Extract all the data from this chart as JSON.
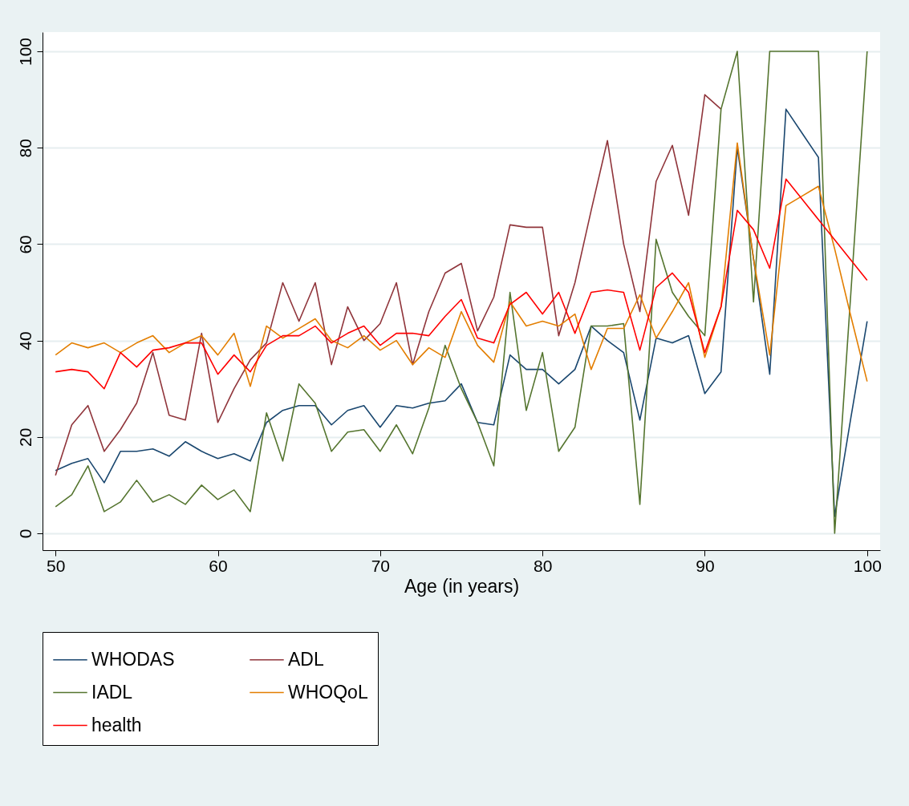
{
  "chart_data": {
    "type": "line",
    "xlabel": "Age (in years)",
    "x": [
      50,
      51,
      52,
      53,
      54,
      55,
      56,
      57,
      58,
      59,
      60,
      61,
      62,
      63,
      64,
      65,
      66,
      67,
      68,
      69,
      70,
      71,
      72,
      73,
      74,
      75,
      76,
      77,
      78,
      79,
      80,
      81,
      82,
      83,
      84,
      85,
      86,
      87,
      88,
      89,
      90,
      91,
      92,
      93,
      94,
      95,
      96,
      97,
      98,
      99,
      100
    ],
    "series": [
      {
        "name": "WHODAS",
        "color": "#1a476f",
        "values": [
          13,
          14.5,
          15.5,
          10.5,
          17,
          17,
          17.5,
          16,
          19,
          17,
          15.5,
          16.5,
          15,
          23,
          25.5,
          26.5,
          26.5,
          22.5,
          25.5,
          26.5,
          22,
          26.5,
          26,
          27,
          27.5,
          31,
          23,
          22.5,
          37,
          34,
          34,
          31,
          34,
          43,
          40,
          37.5,
          23.5,
          40.5,
          39.5,
          41,
          29,
          33.5,
          80,
          57,
          33,
          88,
          83,
          78,
          3.5,
          24,
          44
        ]
      },
      {
        "name": "ADL",
        "color": "#90353b",
        "values": [
          12,
          22.5,
          26.5,
          17,
          21.5,
          27,
          37.5,
          24.5,
          23.5,
          41.5,
          23,
          30,
          36,
          39.5,
          52,
          44,
          52,
          35,
          47,
          40,
          43.5,
          52,
          35,
          46,
          54,
          56,
          42,
          49,
          64,
          63.5,
          63.5,
          41,
          52,
          67,
          81.5,
          60,
          46,
          73,
          80.5,
          66,
          91,
          88,
          null,
          null,
          null,
          null,
          null,
          null,
          null,
          null,
          null
        ]
      },
      {
        "name": "IADL",
        "color": "#55752f",
        "values": [
          5.5,
          8,
          14,
          4.5,
          6.5,
          11,
          6.5,
          8,
          6,
          10,
          7,
          9,
          4.5,
          25,
          15,
          31,
          27,
          17,
          21,
          21.5,
          17,
          22.5,
          16.5,
          26,
          39,
          30,
          23,
          14,
          50,
          25.5,
          37.5,
          17,
          22,
          43,
          43,
          43.5,
          6,
          61,
          50,
          45,
          41,
          88,
          100,
          48,
          100,
          100,
          100,
          100,
          0,
          50,
          100
        ]
      },
      {
        "name": "WHOQoL",
        "color": "#e37e00",
        "values": [
          37,
          39.5,
          38.5,
          39.5,
          37.5,
          39.5,
          41,
          37.5,
          39.5,
          41,
          37,
          41.5,
          30.5,
          43,
          40.5,
          42.5,
          44.5,
          40,
          38.5,
          41,
          38,
          40,
          35,
          38.5,
          36.5,
          46,
          39,
          35.5,
          48,
          43,
          44,
          43,
          45.5,
          34,
          42.5,
          42.5,
          49.5,
          40.5,
          46,
          52,
          36.5,
          47,
          81,
          57,
          37,
          68,
          70,
          72,
          59,
          45,
          31.5
        ]
      },
      {
        "name": "health",
        "color": "#ff0000",
        "values": [
          33.5,
          34,
          33.5,
          30,
          37.5,
          34.5,
          38,
          38.5,
          39.5,
          39.5,
          33,
          37,
          33.5,
          39,
          41,
          41,
          43,
          39.5,
          41.5,
          43,
          39,
          41.5,
          41.5,
          41,
          45,
          48.5,
          40.5,
          39.5,
          47.5,
          50,
          45.5,
          50,
          41.5,
          50,
          50.5,
          50,
          38,
          51,
          54,
          50,
          37.5,
          47,
          67,
          63,
          55,
          73.5,
          69.3,
          65.1,
          60.9,
          56.7,
          52.5
        ]
      }
    ],
    "xlim": [
      49.2,
      100.8
    ],
    "xticks": [
      50,
      60,
      70,
      80,
      90,
      100
    ],
    "ylim": [
      -3.5,
      104
    ],
    "yticks": [
      0,
      20,
      40,
      60,
      80,
      100
    ],
    "grid": "y",
    "legend": "bottom"
  }
}
